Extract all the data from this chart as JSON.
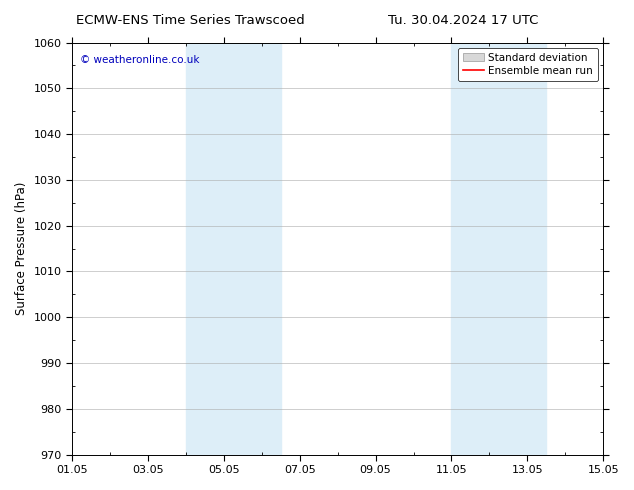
{
  "title_left": "ECMW-ENS Time Series Trawscoed",
  "title_right": "Tu. 30.04.2024 17 UTC",
  "ylabel": "Surface Pressure (hPa)",
  "ylim": [
    970,
    1060
  ],
  "yticks": [
    970,
    980,
    990,
    1000,
    1010,
    1020,
    1030,
    1040,
    1050,
    1060
  ],
  "xtick_labels": [
    "01.05",
    "03.05",
    "05.05",
    "07.05",
    "09.05",
    "11.05",
    "13.05",
    "15.05"
  ],
  "xtick_positions": [
    0,
    2,
    4,
    6,
    8,
    10,
    12,
    14
  ],
  "xlim": [
    0,
    14
  ],
  "shaded_bands": [
    {
      "x_start": 3.0,
      "x_end": 5.5,
      "color": "#ddeef8"
    },
    {
      "x_start": 10.0,
      "x_end": 12.5,
      "color": "#ddeef8"
    }
  ],
  "watermark_text": "© weatheronline.co.uk",
  "watermark_color": "#0000bb",
  "legend_entries": [
    {
      "label": "Standard deviation",
      "type": "band",
      "facecolor": "#d8d8d8",
      "edgecolor": "#999999"
    },
    {
      "label": "Ensemble mean run",
      "type": "line",
      "color": "#ff0000"
    }
  ],
  "background_color": "#ffffff",
  "grid_color": "#aaaaaa",
  "title_fontsize": 9.5,
  "axis_label_fontsize": 8.5,
  "tick_fontsize": 8,
  "legend_fontsize": 7.5
}
